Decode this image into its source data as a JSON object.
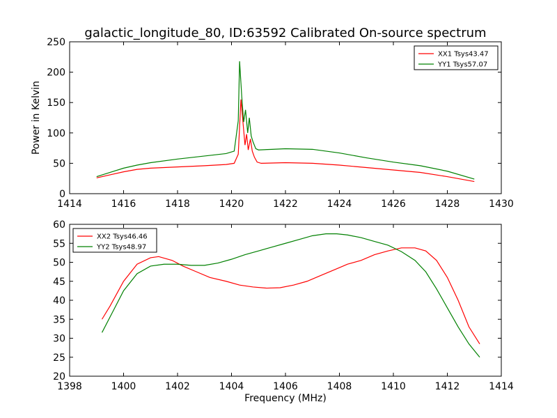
{
  "title": "galactic_longitude_80, ID:63592 Calibrated On-source spectrum",
  "chart_data": [
    {
      "type": "line",
      "ylabel": "Power in Kelvin",
      "xlabel": "",
      "xlim": [
        1414,
        1430
      ],
      "ylim": [
        0,
        250
      ],
      "xticks": [
        "1414",
        "1416",
        "1418",
        "1420",
        "1422",
        "1424",
        "1426",
        "1428",
        "1430"
      ],
      "yticks": [
        "0",
        "50",
        "100",
        "150",
        "200",
        "250"
      ],
      "legend_position": "top-right",
      "grid": false,
      "series": [
        {
          "name": "XX1 Tsys43.47",
          "color": "#ff0000",
          "x": [
            1415.0,
            1415.5,
            1416.0,
            1416.5,
            1417.0,
            1418.0,
            1419.0,
            1419.8,
            1420.1,
            1420.25,
            1420.35,
            1420.42,
            1420.5,
            1420.56,
            1420.62,
            1420.7,
            1420.77,
            1420.85,
            1420.95,
            1421.1,
            1422.0,
            1423.0,
            1424.0,
            1425.0,
            1426.0,
            1427.0,
            1428.0,
            1429.0
          ],
          "y": [
            26,
            31,
            36,
            40,
            42,
            44,
            46,
            48,
            50,
            65,
            155,
            120,
            80,
            98,
            72,
            90,
            70,
            60,
            52,
            50,
            51,
            50,
            47,
            43,
            39,
            35,
            28,
            20
          ]
        },
        {
          "name": "YY1 Tsys57.07",
          "color": "#008000",
          "x": [
            1415.0,
            1415.5,
            1416.0,
            1416.5,
            1417.0,
            1418.0,
            1419.0,
            1419.8,
            1420.1,
            1420.25,
            1420.3,
            1420.38,
            1420.45,
            1420.52,
            1420.6,
            1420.66,
            1420.73,
            1420.8,
            1420.9,
            1421.0,
            1421.5,
            1422.0,
            1423.0,
            1424.0,
            1425.0,
            1426.0,
            1427.0,
            1428.0,
            1429.0
          ],
          "y": [
            28,
            35,
            42,
            47,
            51,
            57,
            62,
            66,
            70,
            120,
            218,
            160,
            118,
            138,
            100,
            125,
            95,
            85,
            74,
            72,
            73,
            74,
            73,
            67,
            59,
            52,
            46,
            37,
            24
          ]
        }
      ]
    },
    {
      "type": "line",
      "xlabel": "Frequency (MHz)",
      "ylabel": "",
      "xlim": [
        1398,
        1414
      ],
      "ylim": [
        20,
        60
      ],
      "xticks": [
        "1398",
        "1400",
        "1402",
        "1404",
        "1406",
        "1408",
        "1410",
        "1412",
        "1414"
      ],
      "yticks": [
        "20",
        "25",
        "30",
        "35",
        "40",
        "45",
        "50",
        "55",
        "60"
      ],
      "legend_position": "top-left",
      "grid": false,
      "series": [
        {
          "name": "XX2 Tsys46.46",
          "color": "#ff0000",
          "x": [
            1399.2,
            1399.5,
            1400.0,
            1400.5,
            1401.0,
            1401.3,
            1401.8,
            1402.2,
            1402.7,
            1403.2,
            1403.8,
            1404.3,
            1404.8,
            1405.3,
            1405.8,
            1406.3,
            1406.8,
            1407.3,
            1407.8,
            1408.3,
            1408.8,
            1409.3,
            1409.8,
            1410.3,
            1410.8,
            1411.2,
            1411.6,
            1412.0,
            1412.4,
            1412.8,
            1413.2
          ],
          "y": [
            35,
            38.5,
            45,
            49.5,
            51.2,
            51.5,
            50.5,
            49,
            47.5,
            46,
            45,
            44,
            43.5,
            43.2,
            43.3,
            44,
            45,
            46.5,
            48,
            49.5,
            50.5,
            52,
            53,
            53.8,
            53.8,
            53,
            50.5,
            46,
            40,
            33,
            28.5
          ]
        },
        {
          "name": "YY2 Tsys48.97",
          "color": "#008000",
          "x": [
            1399.2,
            1399.6,
            1400.0,
            1400.5,
            1401.0,
            1401.5,
            1402.0,
            1402.5,
            1403.0,
            1403.5,
            1404.0,
            1404.5,
            1405.0,
            1405.5,
            1406.0,
            1406.5,
            1407.0,
            1407.5,
            1407.9,
            1408.3,
            1408.8,
            1409.3,
            1409.8,
            1410.3,
            1410.8,
            1411.2,
            1411.6,
            1412.0,
            1412.4,
            1412.8,
            1413.2
          ],
          "y": [
            31.5,
            37,
            42.5,
            47,
            49,
            49.5,
            49.5,
            49.2,
            49.2,
            49.8,
            50.8,
            52,
            53,
            54,
            55,
            56,
            57,
            57.5,
            57.5,
            57.2,
            56.5,
            55.5,
            54.5,
            52.8,
            50.5,
            47.5,
            43,
            38,
            33,
            28.5,
            25
          ]
        }
      ]
    }
  ]
}
